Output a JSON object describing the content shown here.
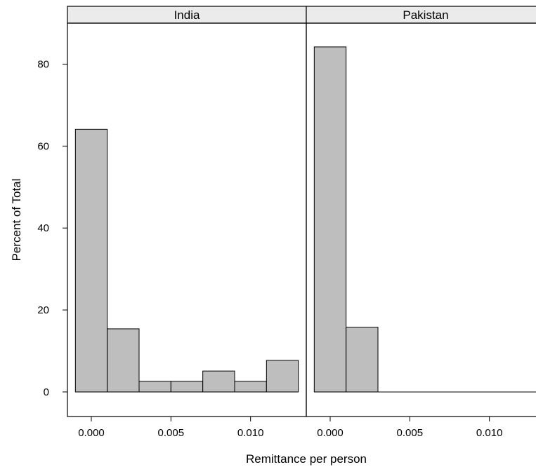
{
  "chart_data": {
    "type": "bar",
    "xlabel": "Remittance per person",
    "ylabel": "Percent of Total",
    "ylim": [
      -6,
      90
    ],
    "y_ticks": [
      0,
      20,
      40,
      60,
      80
    ],
    "xlim": [
      -0.0015,
      0.0135
    ],
    "x_ticks": [
      0.0,
      0.005,
      0.01
    ],
    "x_tick_labels": [
      "0.000",
      "0.005",
      "0.010"
    ],
    "bin_width": 0.002,
    "grid": false,
    "panels": [
      {
        "name": "India",
        "bin_centers": [
          0.0,
          0.002,
          0.004,
          0.006,
          0.008,
          0.01,
          0.012
        ],
        "values": [
          64.1,
          15.4,
          2.6,
          2.6,
          5.1,
          2.6,
          7.7
        ]
      },
      {
        "name": "Pakistan",
        "bin_centers": [
          0.0,
          0.002,
          0.004,
          0.006,
          0.008,
          0.01,
          0.012
        ],
        "values": [
          84.2,
          15.8,
          0,
          0,
          0,
          0,
          0
        ]
      }
    ]
  }
}
